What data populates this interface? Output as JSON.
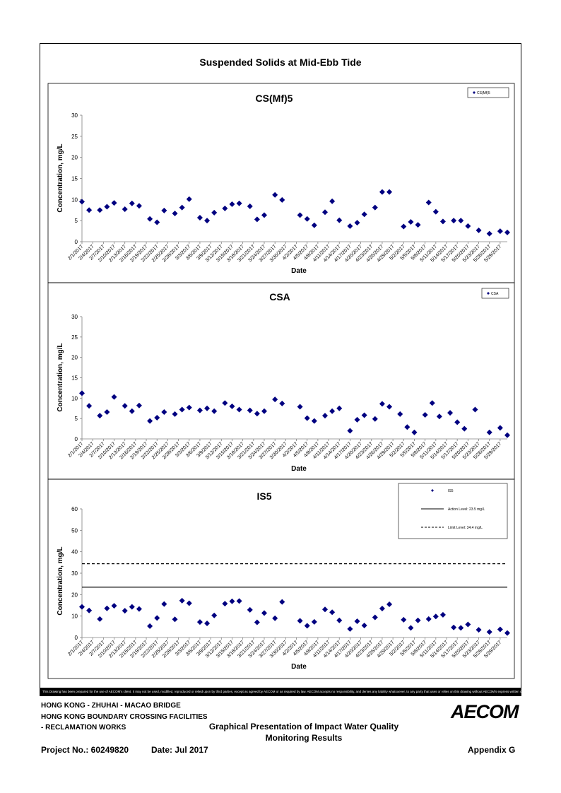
{
  "page": {
    "title": "Suspended Solids at Mid-Ebb Tide",
    "disclaimer": "This Drawing has been prepared for the use of AECOM's client. It may not be used, modified, reproduced or relied upon by third parties, except as agreed by AECOM or as required by law. AECOM accepts no responsibility, and denies any liability whatsoever, to any party that uses or relies on this drawing without AECOM's express written consent."
  },
  "footer": {
    "line1": "HONG KONG - ZHUHAI - MACAO BRIDGE",
    "line2": "HONG KONG BOUNDARY CROSSING FACILITIES",
    "line3": "- RECLAMATION WORKS",
    "center_line1": "Graphical Presentation of Impact Water Quality",
    "center_line2": "Monitoring Results",
    "logo": "AECOM",
    "project": "Project No.: 60249820",
    "date": "Date: Jul 2017",
    "appendix": "Appendix G"
  },
  "chart_data": [
    {
      "type": "scatter",
      "title": "CS(Mf)5",
      "xlabel": "Date",
      "ylabel": "Concentration, mg/L",
      "ylim": [
        0,
        30
      ],
      "yticks": [
        0,
        5,
        10,
        15,
        20,
        25,
        30
      ],
      "xlim": [
        "2/1/2017",
        "5/31/2017"
      ],
      "x_tick_labels": [
        "2/1/2017",
        "2/4/2017",
        "2/7/2017",
        "2/10/2017",
        "2/13/2017",
        "2/16/2017",
        "2/19/2017",
        "2/22/2017",
        "2/25/2017",
        "2/28/2017",
        "3/3/2017",
        "3/6/2017",
        "3/9/2017",
        "3/12/2017",
        "3/15/2017",
        "3/18/2017",
        "3/21/2017",
        "3/24/2017",
        "3/27/2017",
        "3/30/2017",
        "4/2/2017",
        "4/5/2017",
        "4/8/2017",
        "4/11/2017",
        "4/14/2017",
        "4/17/2017",
        "4/20/2017",
        "4/23/2017",
        "4/26/2017",
        "4/29/2017",
        "5/2/2017",
        "5/5/2017",
        "5/8/2017",
        "5/11/2017",
        "5/14/2017",
        "5/17/2017",
        "5/20/2017",
        "5/23/2017",
        "5/26/2017",
        "5/29/2017"
      ],
      "grid": false,
      "legend_position": "top-right",
      "series": [
        {
          "name": "CS(Mf)5",
          "color": "#000080",
          "x": [
            "2/1/2017",
            "2/3/2017",
            "2/6/2017",
            "2/8/2017",
            "2/10/2017",
            "2/13/2017",
            "2/15/2017",
            "2/17/2017",
            "2/20/2017",
            "2/22/2017",
            "2/24/2017",
            "2/27/2017",
            "3/1/2017",
            "3/3/2017",
            "3/6/2017",
            "3/8/2017",
            "3/10/2017",
            "3/13/2017",
            "3/15/2017",
            "3/17/2017",
            "3/20/2017",
            "3/22/2017",
            "3/24/2017",
            "3/27/2017",
            "3/29/2017",
            "4/3/2017",
            "4/5/2017",
            "4/7/2017",
            "4/10/2017",
            "4/12/2017",
            "4/14/2017",
            "4/17/2017",
            "4/19/2017",
            "4/21/2017",
            "4/24/2017",
            "4/26/2017",
            "4/28/2017",
            "5/2/2017",
            "5/4/2017",
            "5/6/2017",
            "5/9/2017",
            "5/11/2017",
            "5/13/2017",
            "5/16/2017",
            "5/18/2017",
            "5/20/2017",
            "5/23/2017",
            "5/26/2017",
            "5/29/2017",
            "5/31/2017"
          ],
          "y": [
            9.5,
            7.5,
            7.5,
            8.3,
            9.2,
            7.7,
            9.1,
            8.5,
            5.4,
            4.6,
            7.4,
            6.7,
            8.1,
            10.1,
            5.7,
            5.0,
            6.9,
            7.9,
            8.9,
            9.1,
            8.4,
            5.3,
            6.3,
            11.1,
            9.9,
            6.3,
            5.4,
            3.9,
            7.0,
            9.6,
            5.1,
            3.7,
            4.5,
            6.5,
            8.1,
            11.8,
            11.8,
            3.6,
            4.7,
            4.0,
            9.3,
            7.1,
            4.8,
            5.0,
            5.0,
            3.7,
            2.7,
            1.9,
            2.5,
            2.2
          ]
        }
      ]
    },
    {
      "type": "scatter",
      "title": "CSA",
      "xlabel": "Date",
      "ylabel": "Concentration, mg/L",
      "ylim": [
        0,
        30
      ],
      "yticks": [
        0,
        5,
        10,
        15,
        20,
        25,
        30
      ],
      "xlim": [
        "2/1/2017",
        "5/31/2017"
      ],
      "x_tick_labels": [
        "2/1/2017",
        "2/4/2017",
        "2/7/2017",
        "2/10/2017",
        "2/13/2017",
        "2/16/2017",
        "2/19/2017",
        "2/22/2017",
        "2/25/2017",
        "2/28/2017",
        "3/3/2017",
        "3/6/2017",
        "3/9/2017",
        "3/12/2017",
        "3/15/2017",
        "3/18/2017",
        "3/21/2017",
        "3/24/2017",
        "3/27/2017",
        "3/30/2017",
        "4/2/2017",
        "4/5/2017",
        "4/8/2017",
        "4/11/2017",
        "4/14/2017",
        "4/17/2017",
        "4/20/2017",
        "4/23/2017",
        "4/26/2017",
        "4/29/2017",
        "5/2/2017",
        "5/5/2017",
        "5/8/2017",
        "5/11/2017",
        "5/14/2017",
        "5/17/2017",
        "5/20/2017",
        "5/23/2017",
        "5/26/2017",
        "5/29/2017"
      ],
      "grid": false,
      "legend_position": "top-right",
      "series": [
        {
          "name": "CSA",
          "color": "#000080",
          "x": [
            "2/1/2017",
            "2/3/2017",
            "2/6/2017",
            "2/8/2017",
            "2/10/2017",
            "2/13/2017",
            "2/15/2017",
            "2/17/2017",
            "2/20/2017",
            "2/22/2017",
            "2/24/2017",
            "2/27/2017",
            "3/1/2017",
            "3/3/2017",
            "3/6/2017",
            "3/8/2017",
            "3/10/2017",
            "3/13/2017",
            "3/15/2017",
            "3/17/2017",
            "3/20/2017",
            "3/22/2017",
            "3/24/2017",
            "3/27/2017",
            "3/29/2017",
            "4/3/2017",
            "4/5/2017",
            "4/7/2017",
            "4/10/2017",
            "4/12/2017",
            "4/14/2017",
            "4/17/2017",
            "4/19/2017",
            "4/21/2017",
            "4/24/2017",
            "4/26/2017",
            "4/28/2017",
            "5/1/2017",
            "5/3/2017",
            "5/5/2017",
            "5/8/2017",
            "5/10/2017",
            "5/12/2017",
            "5/15/2017",
            "5/17/2017",
            "5/19/2017",
            "5/22/2017",
            "5/26/2017",
            "5/29/2017",
            "5/31/2017"
          ],
          "y": [
            11.2,
            8.1,
            5.7,
            6.6,
            10.3,
            8.1,
            6.8,
            8.2,
            4.4,
            5.2,
            6.6,
            6.1,
            7.2,
            7.7,
            7.0,
            7.5,
            6.8,
            8.8,
            8.0,
            7.2,
            7.0,
            6.2,
            6.8,
            9.7,
            8.7,
            7.9,
            5.1,
            4.4,
            5.7,
            6.8,
            7.5,
            2.0,
            4.7,
            5.8,
            4.9,
            8.6,
            7.9,
            6.1,
            2.9,
            1.6,
            5.9,
            8.8,
            5.5,
            6.4,
            4.1,
            2.5,
            7.2,
            1.6,
            2.7,
            0.9
          ]
        }
      ]
    },
    {
      "type": "scatter",
      "title": "IS5",
      "xlabel": "Date",
      "ylabel": "Concentration, mg/L",
      "ylim": [
        0,
        60
      ],
      "yticks": [
        0,
        10,
        20,
        30,
        40,
        50,
        60
      ],
      "xlim": [
        "2/1/2017",
        "5/31/2017"
      ],
      "x_tick_labels": [
        "2/1/2017",
        "2/4/2017",
        "2/7/2017",
        "2/10/2017",
        "2/13/2017",
        "2/16/2017",
        "2/19/2017",
        "2/22/2017",
        "2/25/2017",
        "2/28/2017",
        "3/3/2017",
        "3/6/2017",
        "3/9/2017",
        "3/12/2017",
        "3/15/2017",
        "3/18/2017",
        "3/21/2017",
        "3/24/2017",
        "3/27/2017",
        "3/30/2017",
        "4/2/2017",
        "4/5/2017",
        "4/8/2017",
        "4/11/2017",
        "4/14/2017",
        "4/17/2017",
        "4/20/2017",
        "4/23/2017",
        "4/26/2017",
        "4/29/2017",
        "5/2/2017",
        "5/5/2017",
        "5/8/2017",
        "5/11/2017",
        "5/14/2017",
        "5/17/2017",
        "5/20/2017",
        "5/23/2017",
        "5/26/2017",
        "5/29/2017"
      ],
      "grid": false,
      "legend_position": "top-right",
      "series": [
        {
          "name": "IS5",
          "color": "#000080",
          "x": [
            "2/1/2017",
            "2/3/2017",
            "2/6/2017",
            "2/8/2017",
            "2/10/2017",
            "2/13/2017",
            "2/15/2017",
            "2/17/2017",
            "2/20/2017",
            "2/22/2017",
            "2/24/2017",
            "2/27/2017",
            "3/1/2017",
            "3/3/2017",
            "3/6/2017",
            "3/8/2017",
            "3/10/2017",
            "3/13/2017",
            "3/15/2017",
            "3/17/2017",
            "3/20/2017",
            "3/22/2017",
            "3/24/2017",
            "3/27/2017",
            "3/29/2017",
            "4/3/2017",
            "4/5/2017",
            "4/7/2017",
            "4/10/2017",
            "4/12/2017",
            "4/14/2017",
            "4/17/2017",
            "4/19/2017",
            "4/21/2017",
            "4/24/2017",
            "4/26/2017",
            "4/28/2017",
            "5/2/2017",
            "5/4/2017",
            "5/6/2017",
            "5/9/2017",
            "5/11/2017",
            "5/13/2017",
            "5/16/2017",
            "5/18/2017",
            "5/20/2017",
            "5/23/2017",
            "5/26/2017",
            "5/29/2017",
            "5/31/2017"
          ],
          "y": [
            14.3,
            12.6,
            8.6,
            13.6,
            14.8,
            12.5,
            14.3,
            13.3,
            5.3,
            9.1,
            15.6,
            8.5,
            17.2,
            16.0,
            7.2,
            6.6,
            10.3,
            15.8,
            16.9,
            17.0,
            12.9,
            7.1,
            11.4,
            9.0,
            16.6,
            7.8,
            5.5,
            7.3,
            13.1,
            11.8,
            8.0,
            4.0,
            7.6,
            5.6,
            9.4,
            13.5,
            15.5,
            8.3,
            4.5,
            8.0,
            8.6,
            9.8,
            10.6,
            4.7,
            4.5,
            6.1,
            3.6,
            2.6,
            3.8,
            2.1
          ]
        },
        {
          "name": "Action Level: 23.5 mg/L",
          "type": "line",
          "style": "solid",
          "value": 23.5
        },
        {
          "name": "Limit Level: 34.4 mg/L",
          "type": "line",
          "style": "dashed",
          "value": 34.4
        }
      ]
    }
  ]
}
